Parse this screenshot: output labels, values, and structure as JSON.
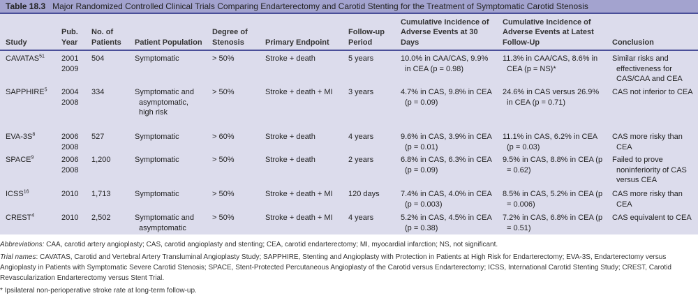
{
  "title": {
    "number": "Table 18.3",
    "text": "Major Randomized Controlled Clinical Trials Comparing Endarterectomy and Carotid Stenting for the Treatment of Symptomatic Carotid Stenosis"
  },
  "headers": [
    "Study",
    "Pub. Year",
    "No. of Patients",
    "Patient Population",
    "Degree of Stenosis",
    "Primary Endpoint",
    "Follow-up Period",
    "Cumulative Incidence of Adverse Events at 30 Days",
    "Cumulative Incidence of Adverse Events at Latest Follow-Up",
    "Conclusion"
  ],
  "rows": [
    {
      "study": "CAVATAS",
      "ref": "51",
      "year": "2001\n2009",
      "patients": "504",
      "population": "Symptomatic",
      "stenosis": "> 50%",
      "endpoint": "Stroke + death",
      "followup": "5 years",
      "day30": "10.0% in CAA/CAS, 9.9% in CEA (p = 0.98)",
      "latest": "11.3% in CAA/CAS, 8.6% in CEA (p = NS)*",
      "conclusion": "Similar risks and effectiveness for CAS/CAA and CEA"
    },
    {
      "study": "SAPPHIRE",
      "ref": "5",
      "year": "2004\n2008",
      "patients": "334",
      "population": "Symptomatic and asymptomatic, high risk",
      "stenosis": "> 50%",
      "endpoint": "Stroke + death + MI",
      "followup": "3 years",
      "day30": "4.7% in CAS, 9.8% in CEA (p = 0.09)",
      "latest": "24.6% in CAS versus 26.9% in CEA (p = 0.71)",
      "conclusion": "CAS not inferior to CEA"
    },
    {
      "study": "EVA-3S",
      "ref": "8",
      "year": "2006\n2008",
      "patients": "527",
      "population": "Symptomatic",
      "stenosis": "> 60%",
      "endpoint": "Stroke + death",
      "followup": "4 years",
      "day30": "9.6% in CAS, 3.9% in CEA (p = 0.01)",
      "latest": "11.1% in CAS, 6.2% in CEA (p = 0.03)",
      "conclusion": "CAS more risky than CEA"
    },
    {
      "study": "SPACE",
      "ref": "9",
      "year": "2006\n2008",
      "patients": "1,200",
      "population": "Symptomatic",
      "stenosis": "> 50%",
      "endpoint": "Stroke + death",
      "followup": "2 years",
      "day30": "6.8% in CAS, 6.3% in CEA (p = 0.09)",
      "latest": "9.5% in CAS, 8.8% in CEA (p = 0.62)",
      "conclusion": "Failed to prove noninferiority of CAS versus CEA"
    },
    {
      "study": "ICSS",
      "ref": "16",
      "year": "2010",
      "patients": "1,713",
      "population": "Symptomatic",
      "stenosis": "> 50%",
      "endpoint": "Stroke + death + MI",
      "followup": "120 days",
      "day30": "7.4% in CAS, 4.0% in CEA (p = 0.003)",
      "latest": "8.5% in CAS, 5.2% in CEA (p = 0.006)",
      "conclusion": "CAS more risky than CEA"
    },
    {
      "study": "CREST",
      "ref": "4",
      "year": "2010",
      "patients": "2,502",
      "population": "Symptomatic and asymptomatic",
      "stenosis": "> 50%",
      "endpoint": "Stroke + death + MI",
      "followup": "4 years",
      "day30": "5.2% in CAS, 4.5% in CEA (p = 0.38)",
      "latest": "7.2% in CAS, 6.8% in CEA (p = 0.51)",
      "conclusion": "CAS equivalent to CEA"
    }
  ],
  "notes": {
    "abbrev_label": "Abbreviations:",
    "abbrev_text": " CAA, carotid artery angioplasty; CAS, carotid angioplasty and stenting; CEA, carotid endarterectomy; MI, myocardial infarction; NS, not significant.",
    "trial_label": "Trial names",
    "trial_text": ": CAVATAS, Carotid and Vertebral Artery Transluminal Angioplasty Study; SAPPHIRE, Stenting and Angioplasty with Protection in Patients at High Risk for Endarterectomy; EVA-3S, Endarterectomy versus Angioplasty in Patients with Symptomatic Severe Carotid Stenosis; SPACE, Stent-Protected Percutaneous Angioplasty of the Carotid versus Endarterectomy; ICSS, International Carotid Stenting Study; CREST, Carotid Revascularization Endarterectomy versus Stent Trial.",
    "footnote": "* Ipsilateral non-perioperative stroke rate at long-term follow-up."
  }
}
